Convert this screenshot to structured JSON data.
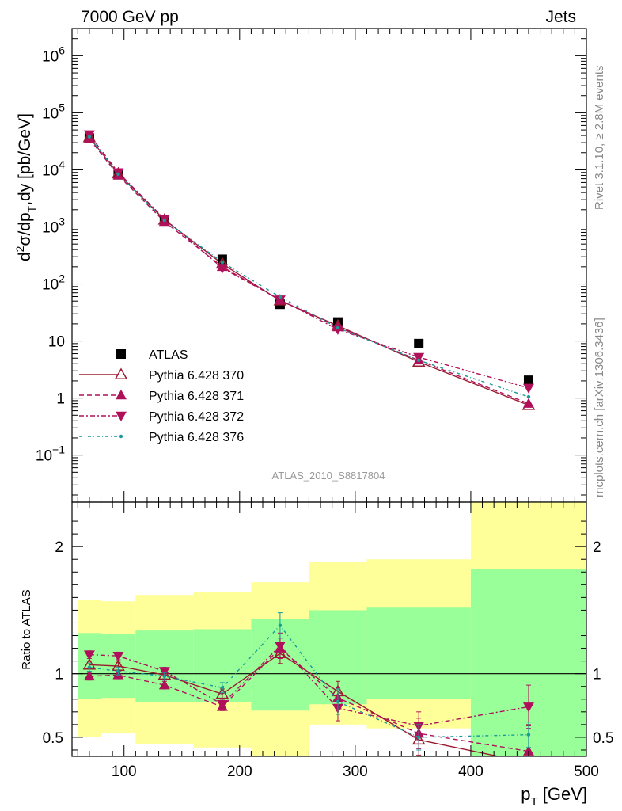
{
  "header": {
    "left": "7000 GeV pp",
    "right": "Jets"
  },
  "side_labels": {
    "top": "Rivet 3.1.10, ≥ 2.8M events",
    "bottom": "mcplots.cern.ch [arXiv:1306.3436]"
  },
  "analysis_label": "ATLAS_2010_S8817804",
  "colors": {
    "atlas": "#000000",
    "p370": "#9b1b30",
    "p371": "#b0105a",
    "p372": "#b0105a",
    "p376": "#1a9a9a",
    "band_inner": "#99ff99",
    "band_outer": "#ffff99"
  },
  "chart_data": [
    {
      "type": "scatter",
      "scale": "log",
      "ylabel_parts": [
        "d",
        "2",
        "σ/dp",
        "T",
        ",dy [pb/GeV]"
      ],
      "ylim": [
        0.015,
        3000000
      ],
      "xlim": [
        55,
        500
      ],
      "y_ticks": [
        {
          "value": 1000000,
          "base": "10",
          "exp": "6"
        },
        {
          "value": 100000,
          "base": "10",
          "exp": "5"
        },
        {
          "value": 10000,
          "base": "10",
          "exp": "4"
        },
        {
          "value": 1000,
          "base": "10",
          "exp": "3"
        },
        {
          "value": 100,
          "base": "10",
          "exp": "2"
        },
        {
          "value": 10,
          "base": "10",
          "exp": ""
        },
        {
          "value": 1,
          "base": "1",
          "exp": ""
        },
        {
          "value": 0.1,
          "base": "10",
          "exp": "−1"
        }
      ],
      "series": [
        {
          "name": "ATLAS",
          "key": "atlas",
          "marker": "square",
          "x": [
            70,
            95,
            135,
            185,
            235,
            285,
            355,
            450
          ],
          "y": [
            36000,
            8200,
            1350,
            270,
            44,
            21.5,
            9,
            2.05
          ]
        },
        {
          "name": "Pythia 6.428 370",
          "key": "p370",
          "marker": "tri-up-open",
          "dash": "",
          "x": [
            70,
            95,
            135,
            185,
            235,
            285,
            355,
            450
          ],
          "y": [
            37000,
            8600,
            1330,
            225,
            51,
            18.5,
            4.3,
            0.75
          ]
        },
        {
          "name": "Pythia 6.428 371",
          "key": "p371",
          "marker": "tri-up",
          "dash": "6,4",
          "x": [
            70,
            95,
            135,
            185,
            235,
            285,
            355,
            450
          ],
          "y": [
            35000,
            8000,
            1230,
            200,
            52,
            17.5,
            4.6,
            0.8
          ]
        },
        {
          "name": "Pythia 6.428 372",
          "key": "p372",
          "marker": "tri-down",
          "dash": "6,3,2,3",
          "x": [
            70,
            95,
            135,
            185,
            235,
            285,
            355,
            450
          ],
          "y": [
            41500,
            9000,
            1380,
            190,
            53,
            16,
            5.2,
            1.5
          ]
        },
        {
          "name": "Pythia 6.428 376",
          "key": "p376",
          "marker": "dot",
          "dash": "4,3,1,3",
          "x": [
            70,
            95,
            135,
            185,
            235,
            285,
            355,
            450
          ],
          "y": [
            38000,
            8400,
            1310,
            240,
            59,
            17,
            4.6,
            1.05
          ]
        }
      ]
    },
    {
      "type": "line",
      "ylabel": "Ratio to ATLAS",
      "xlabel_parts": [
        "p",
        "T",
        " [GeV]"
      ],
      "xlim": [
        55,
        500
      ],
      "ylim": [
        0.35,
        2.35
      ],
      "x_ticks": [
        100,
        200,
        300,
        400,
        500
      ],
      "y_ticks": [
        {
          "value": 0.5,
          "label": "0.5"
        },
        {
          "value": 1,
          "label": "1"
        },
        {
          "value": 2,
          "label": "2"
        }
      ],
      "bins": [
        {
          "x0": 60,
          "x1": 80,
          "inner": [
            0.8,
            1.32
          ],
          "outer": [
            0.5,
            1.58
          ]
        },
        {
          "x0": 80,
          "x1": 110,
          "inner": [
            0.81,
            1.31
          ],
          "outer": [
            0.53,
            1.57
          ]
        },
        {
          "x0": 110,
          "x1": 160,
          "inner": [
            0.78,
            1.34
          ],
          "outer": [
            0.45,
            1.62
          ]
        },
        {
          "x0": 160,
          "x1": 210,
          "inner": [
            0.78,
            1.35
          ],
          "outer": [
            0.42,
            1.64
          ]
        },
        {
          "x0": 210,
          "x1": 260,
          "inner": [
            0.71,
            1.43
          ],
          "outer": [
            0.35,
            1.72
          ]
        },
        {
          "x0": 260,
          "x1": 310,
          "inner": [
            0.76,
            1.5
          ],
          "outer": [
            0.6,
            1.88
          ]
        },
        {
          "x0": 310,
          "x1": 400,
          "inner": [
            0.8,
            1.52
          ],
          "outer": [
            0.57,
            1.9
          ]
        },
        {
          "x0": 400,
          "x1": 500,
          "inner": [
            0.35,
            1.82
          ],
          "outer": [
            0.35,
            2.35
          ]
        }
      ],
      "series": [
        {
          "name": "Pythia 6.428 370",
          "key": "p370",
          "marker": "tri-up-open",
          "dash": "",
          "x": [
            70,
            95,
            135,
            185,
            235,
            285,
            355,
            450
          ],
          "y": [
            1.07,
            1.06,
            0.99,
            0.84,
            1.16,
            0.86,
            0.48,
            0.3
          ],
          "err": [
            0.03,
            0.03,
            0.03,
            0.04,
            0.08,
            0.08,
            0.12,
            0.3
          ]
        },
        {
          "name": "Pythia 6.428 371",
          "key": "p371",
          "marker": "tri-up",
          "dash": "6,4",
          "x": [
            70,
            95,
            135,
            185,
            235,
            285,
            355,
            450
          ],
          "y": [
            0.98,
            0.99,
            0.91,
            0.74,
            1.2,
            0.81,
            0.53,
            0.39
          ],
          "err": [
            0.03,
            0.03,
            0.03,
            0.03,
            0.08,
            0.08,
            0.12,
            0.2
          ]
        },
        {
          "name": "Pythia 6.428 372",
          "key": "p372",
          "marker": "tri-down",
          "dash": "6,3,2,3",
          "x": [
            70,
            95,
            135,
            185,
            235,
            285,
            355,
            450
          ],
          "y": [
            1.15,
            1.14,
            1.02,
            0.76,
            1.22,
            0.73,
            0.59,
            0.74
          ],
          "err": [
            0.03,
            0.03,
            0.03,
            0.04,
            0.1,
            0.1,
            0.11,
            0.17
          ]
        },
        {
          "name": "Pythia 6.428 376",
          "key": "p376",
          "marker": "dot",
          "dash": "4,3,1,3",
          "x": [
            70,
            95,
            135,
            185,
            235,
            285,
            355,
            450
          ],
          "y": [
            1.05,
            1.02,
            0.98,
            0.89,
            1.38,
            0.78,
            0.5,
            0.52
          ],
          "err": [
            0.03,
            0.03,
            0.03,
            0.04,
            0.1,
            0.1,
            0.1,
            0.1
          ]
        }
      ]
    }
  ]
}
